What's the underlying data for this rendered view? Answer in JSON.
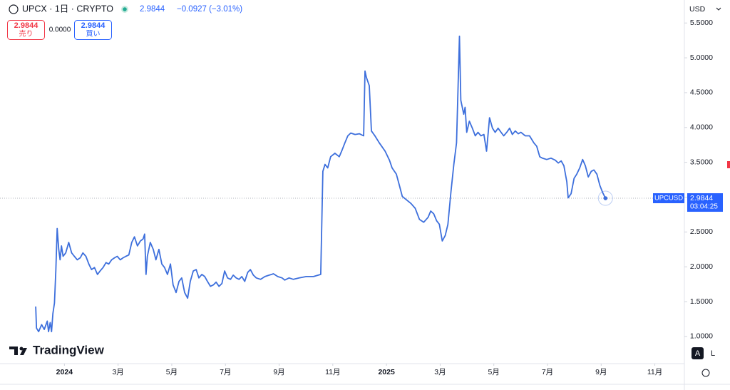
{
  "chart_data": {
    "type": "line",
    "title": "UPCX · 1日 · CRYPTO",
    "last_price": "2.9844",
    "change": "−0.0927 (−3.01%)",
    "sell_price": "2.9844",
    "sell_label": "売り",
    "spread": "0.0000",
    "buy_price": "2.9844",
    "buy_label": "買い",
    "currency": "USD",
    "price_tag": "UPCUSD",
    "countdown": "03:04:25",
    "brand": "TradingView",
    "auto_button": "A",
    "log_button": "L",
    "xlim": [
      -2.4,
      23.1
    ],
    "xticks": [
      {
        "value": 0,
        "label": "2024"
      },
      {
        "value": 2,
        "label": "3月"
      },
      {
        "value": 4,
        "label": "5月"
      },
      {
        "value": 6,
        "label": "7月"
      },
      {
        "value": 8,
        "label": "9月"
      },
      {
        "value": 10,
        "label": "11月"
      },
      {
        "value": 12,
        "label": "2025"
      },
      {
        "value": 14,
        "label": "3月"
      },
      {
        "value": 16,
        "label": "5月"
      },
      {
        "value": 18,
        "label": "7月"
      },
      {
        "value": 20,
        "label": "9月"
      },
      {
        "value": 22,
        "label": "11月"
      }
    ],
    "ylim": [
      0.61,
      5.83
    ],
    "yticks": [
      {
        "value": 1,
        "label": "1.0000"
      },
      {
        "value": 1.5,
        "label": "1.5000"
      },
      {
        "value": 2,
        "label": "2.0000"
      },
      {
        "value": 2.5,
        "label": "2.5000"
      },
      {
        "value": 3,
        "label": "3.0000"
      },
      {
        "value": 3.5,
        "label": "3.5000"
      },
      {
        "value": 4,
        "label": "4.0000"
      },
      {
        "value": 4.5,
        "label": "4.5000"
      },
      {
        "value": 5,
        "label": "5.0000"
      },
      {
        "value": 5.5,
        "label": "5.5000"
      }
    ],
    "grid": false,
    "x": [
      -1.07,
      -1.04,
      -0.96,
      -0.85,
      -0.75,
      -0.64,
      -0.59,
      -0.53,
      -0.48,
      -0.43,
      -0.37,
      -0.32,
      -0.27,
      -0.21,
      -0.16,
      -0.11,
      -0.05,
      0.05,
      0.16,
      0.27,
      0.37,
      0.48,
      0.59,
      0.69,
      0.8,
      0.91,
      1.01,
      1.12,
      1.23,
      1.33,
      1.44,
      1.55,
      1.65,
      1.76,
      1.87,
      1.97,
      2.08,
      2.19,
      2.29,
      2.4,
      2.51,
      2.61,
      2.72,
      2.83,
      2.93,
      2.99,
      3.04,
      3.09,
      3.2,
      3.31,
      3.41,
      3.52,
      3.63,
      3.73,
      3.84,
      3.95,
      4.05,
      4.16,
      4.27,
      4.37,
      4.48,
      4.59,
      4.69,
      4.8,
      4.91,
      5.01,
      5.12,
      5.23,
      5.33,
      5.44,
      5.55,
      5.65,
      5.76,
      5.87,
      5.97,
      6.08,
      6.19,
      6.29,
      6.4,
      6.51,
      6.61,
      6.72,
      6.83,
      6.93,
      7.04,
      7.15,
      7.31,
      7.47,
      7.63,
      7.79,
      7.95,
      8.11,
      8.21,
      8.37,
      8.53,
      8.75,
      9.01,
      9.28,
      9.55,
      9.63,
      9.71,
      9.81,
      9.92,
      10.08,
      10.24,
      10.35,
      10.45,
      10.56,
      10.67,
      10.83,
      10.99,
      11.15,
      11.2,
      11.25,
      11.36,
      11.44,
      11.57,
      11.73,
      11.95,
      12.11,
      12.21,
      12.37,
      12.48,
      12.59,
      12.75,
      12.91,
      13.07,
      13.23,
      13.39,
      13.55,
      13.65,
      13.76,
      13.87,
      13.97,
      14.08,
      14.19,
      14.29,
      14.4,
      14.51,
      14.61,
      14.67,
      14.72,
      14.77,
      14.88,
      14.93,
      14.99,
      15.09,
      15.2,
      15.31,
      15.41,
      15.52,
      15.63,
      15.73,
      15.84,
      15.95,
      16.05,
      16.16,
      16.27,
      16.37,
      16.48,
      16.59,
      16.69,
      16.8,
      16.91,
      17.01,
      17.17,
      17.33,
      17.49,
      17.6,
      17.71,
      17.81,
      17.97,
      18.13,
      18.29,
      18.4,
      18.51,
      18.61,
      18.72,
      18.77,
      18.88,
      18.99,
      19.09,
      19.2,
      19.31,
      19.41,
      19.52,
      19.63,
      19.73,
      19.84,
      19.95,
      20.05,
      20.16
    ],
    "series": [
      {
        "name": "UPCUSD",
        "color": "#3d6fdc",
        "values": [
          1.43,
          1.12,
          1.07,
          1.17,
          1.1,
          1.22,
          1.07,
          1.2,
          1.07,
          1.33,
          1.48,
          1.94,
          2.55,
          2.25,
          2.1,
          2.3,
          2.15,
          2.2,
          2.35,
          2.2,
          2.15,
          2.1,
          2.13,
          2.2,
          2.15,
          2.04,
          1.96,
          1.99,
          1.89,
          1.94,
          1.99,
          2.06,
          2.04,
          2.1,
          2.13,
          2.15,
          2.1,
          2.13,
          2.15,
          2.17,
          2.35,
          2.43,
          2.3,
          2.37,
          2.4,
          2.47,
          1.89,
          2.15,
          2.35,
          2.25,
          2.1,
          2.25,
          2.04,
          1.99,
          1.89,
          2.04,
          1.74,
          1.63,
          1.79,
          1.84,
          1.63,
          1.55,
          1.79,
          1.94,
          1.96,
          1.84,
          1.89,
          1.86,
          1.79,
          1.72,
          1.74,
          1.78,
          1.72,
          1.76,
          1.94,
          1.84,
          1.82,
          1.88,
          1.84,
          1.82,
          1.86,
          1.79,
          1.92,
          1.96,
          1.88,
          1.84,
          1.82,
          1.86,
          1.88,
          1.9,
          1.86,
          1.84,
          1.81,
          1.84,
          1.82,
          1.84,
          1.86,
          1.86,
          1.89,
          3.37,
          3.47,
          3.42,
          3.58,
          3.63,
          3.58,
          3.68,
          3.78,
          3.88,
          3.92,
          3.9,
          3.91,
          3.88,
          4.81,
          4.72,
          4.6,
          3.95,
          3.88,
          3.78,
          3.66,
          3.53,
          3.42,
          3.33,
          3.17,
          3.01,
          2.96,
          2.91,
          2.84,
          2.68,
          2.64,
          2.71,
          2.8,
          2.76,
          2.66,
          2.61,
          2.37,
          2.45,
          2.61,
          3.07,
          3.47,
          3.78,
          4.6,
          5.31,
          4.39,
          4.19,
          4.29,
          3.93,
          4.09,
          3.99,
          3.88,
          3.93,
          3.88,
          3.9,
          3.66,
          4.14,
          3.99,
          3.93,
          3.99,
          3.93,
          3.88,
          3.93,
          3.99,
          3.9,
          3.95,
          3.91,
          3.93,
          3.88,
          3.88,
          3.78,
          3.73,
          3.58,
          3.56,
          3.54,
          3.56,
          3.53,
          3.49,
          3.52,
          3.45,
          3.22,
          2.99,
          3.05,
          3.27,
          3.33,
          3.42,
          3.54,
          3.45,
          3.29,
          3.37,
          3.39,
          3.33,
          3.17,
          3.07,
          2.9844
        ]
      }
    ]
  }
}
